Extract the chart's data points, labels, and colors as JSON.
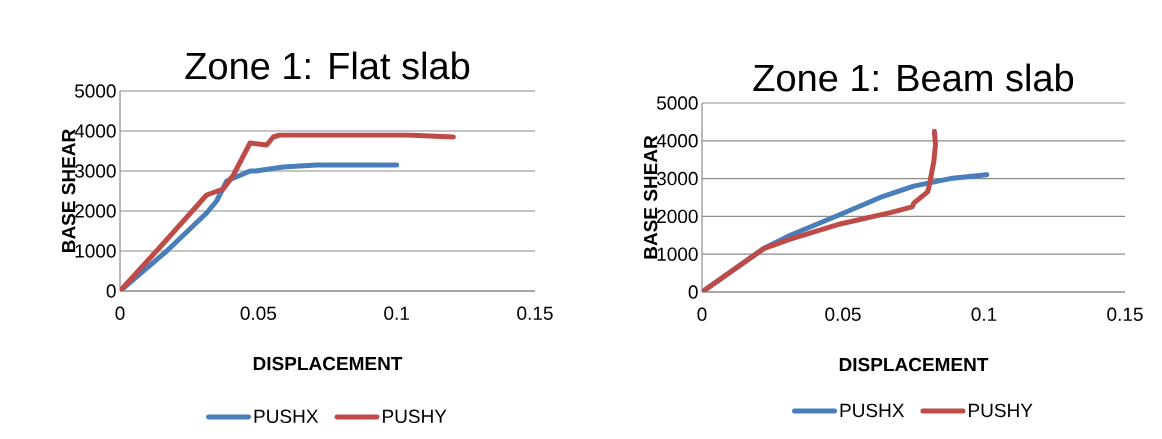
{
  "chart_data": [
    {
      "type": "line",
      "title": "Zone 1: Flat slab",
      "xlabel": "DISPLACEMENT",
      "ylabel": "BASE SHEAR",
      "xlim": [
        0,
        0.15
      ],
      "ylim": [
        0,
        5000
      ],
      "xticks": [
        0,
        0.05,
        0.1,
        0.15
      ],
      "yticks": [
        0,
        1000,
        2000,
        3000,
        4000,
        5000
      ],
      "grid": "y",
      "legend": "bottom",
      "series": [
        {
          "name": "PUSHX",
          "color": "#4a7ebb",
          "x": [
            0,
            0.0169,
            0.0313,
            0.0349,
            0.0386,
            0.047,
            0.049,
            0.059,
            0.0711,
            0.0867,
            0.1
          ],
          "values": [
            0,
            1000,
            1950,
            2250,
            2750,
            3000,
            3000,
            3100,
            3150,
            3150,
            3150
          ]
        },
        {
          "name": "PUSHY",
          "color": "#be4b48",
          "x": [
            0,
            0.0145,
            0.0313,
            0.0373,
            0.041,
            0.047,
            0.053,
            0.0554,
            0.0578,
            0.0771,
            0.0952,
            0.1036,
            0.1205
          ],
          "values": [
            0,
            1100,
            2400,
            2550,
            2900,
            3700,
            3650,
            3850,
            3900,
            3900,
            3900,
            3900,
            3850
          ]
        }
      ]
    },
    {
      "type": "line",
      "title": "Zone 1: Beam slab",
      "xlabel": "DISPLACEMENT",
      "ylabel": "BASE SHEAR",
      "xlim": [
        0,
        0.15
      ],
      "ylim": [
        0,
        5000
      ],
      "xticks": [
        0,
        0.05,
        0.1,
        0.15
      ],
      "yticks": [
        0,
        1000,
        2000,
        3000,
        4000,
        5000
      ],
      "grid": "y",
      "legend": "bottom",
      "series": [
        {
          "name": "PUSHX",
          "color": "#4a7ebb",
          "x": [
            0,
            0.0219,
            0.0313,
            0.049,
            0.0632,
            0.0751,
            0.088,
            0.101
          ],
          "values": [
            0,
            1150,
            1500,
            2050,
            2500,
            2800,
            3000,
            3100
          ]
        },
        {
          "name": "PUSHY",
          "color": "#be4b48",
          "x": [
            0,
            0.0219,
            0.0313,
            0.049,
            0.0668,
            0.0745,
            0.0751,
            0.08,
            0.0804,
            0.0822,
            0.0828,
            0.0824
          ],
          "values": [
            0,
            1150,
            1400,
            1800,
            2100,
            2250,
            2350,
            2650,
            2750,
            3450,
            3900,
            4250
          ]
        }
      ]
    }
  ]
}
